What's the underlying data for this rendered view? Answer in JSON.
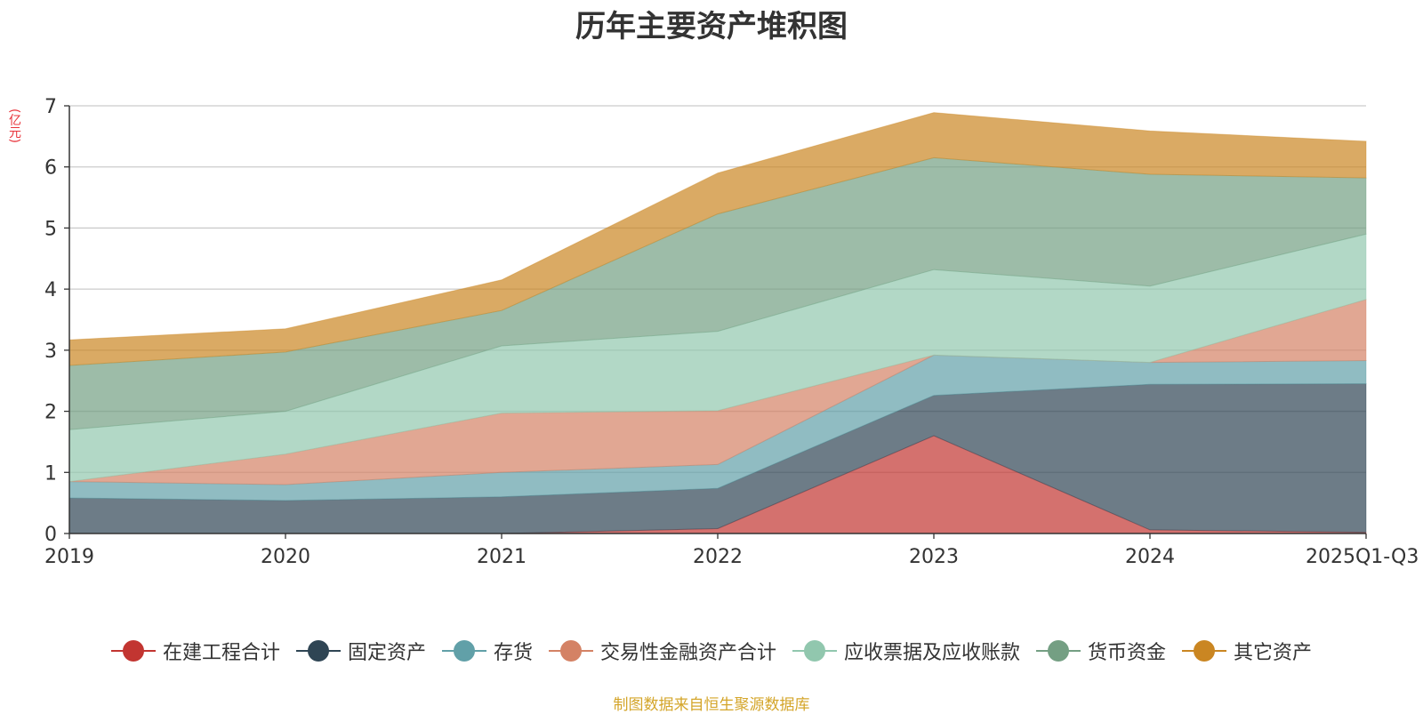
{
  "chart_data": {
    "type": "area",
    "stacked": true,
    "title": "历年主要资产堆积图",
    "ylabel": "(亿元)",
    "xlabel": "",
    "categories": [
      "2019",
      "2020",
      "2021",
      "2022",
      "2023",
      "2024",
      "2025Q1-Q3"
    ],
    "ylim": [
      0,
      7
    ],
    "yticks": [
      0,
      1,
      2,
      3,
      4,
      5,
      6,
      7
    ],
    "grid": true,
    "legend_position": "bottom",
    "series": [
      {
        "name": "在建工程合计",
        "color": "#c23531",
        "values": [
          0.0,
          0.0,
          0.0,
          0.08,
          1.6,
          0.06,
          0.02
        ]
      },
      {
        "name": "固定资产",
        "color": "#2f4554",
        "values": [
          0.58,
          0.54,
          0.6,
          0.66,
          0.66,
          2.38,
          2.43
        ]
      },
      {
        "name": "存货",
        "color": "#61a0a8",
        "values": [
          0.27,
          0.26,
          0.4,
          0.39,
          0.66,
          0.36,
          0.38
        ]
      },
      {
        "name": "交易性金融资产合计",
        "color": "#d48265",
        "values": [
          0.0,
          0.5,
          0.97,
          0.88,
          0.0,
          0.0,
          1.0
        ]
      },
      {
        "name": "应收票据及应收账款",
        "color": "#91c7ae",
        "values": [
          0.85,
          0.7,
          1.1,
          1.3,
          1.4,
          1.25,
          1.07
        ]
      },
      {
        "name": "货币资金",
        "color": "#749f83",
        "values": [
          1.05,
          0.97,
          0.58,
          1.92,
          1.83,
          1.83,
          0.92
        ]
      },
      {
        "name": "其它资产",
        "color": "#ca8622",
        "values": [
          0.42,
          0.38,
          0.5,
          0.67,
          0.74,
          0.71,
          0.6
        ]
      }
    ]
  },
  "source_note": "制图数据来自恒生聚源数据库"
}
